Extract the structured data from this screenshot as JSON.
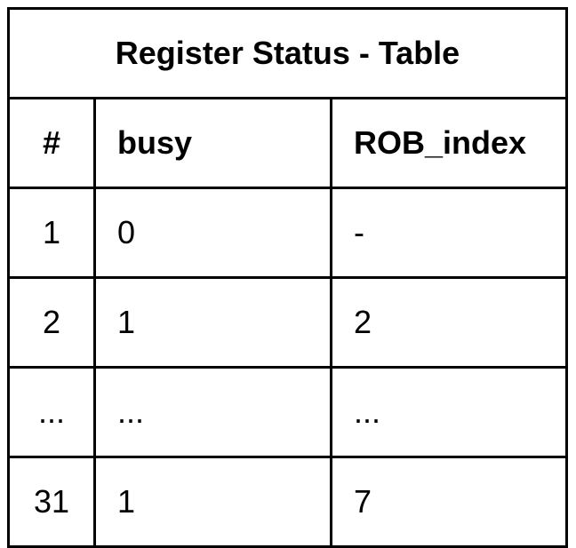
{
  "table": {
    "title": "Register Status - Table",
    "headers": [
      "#",
      "busy",
      "ROB_index"
    ],
    "rows": [
      [
        "1",
        "0",
        "-"
      ],
      [
        "2",
        "1",
        "2"
      ],
      [
        "...",
        "...",
        "..."
      ],
      [
        "31",
        "1",
        "7"
      ]
    ]
  }
}
